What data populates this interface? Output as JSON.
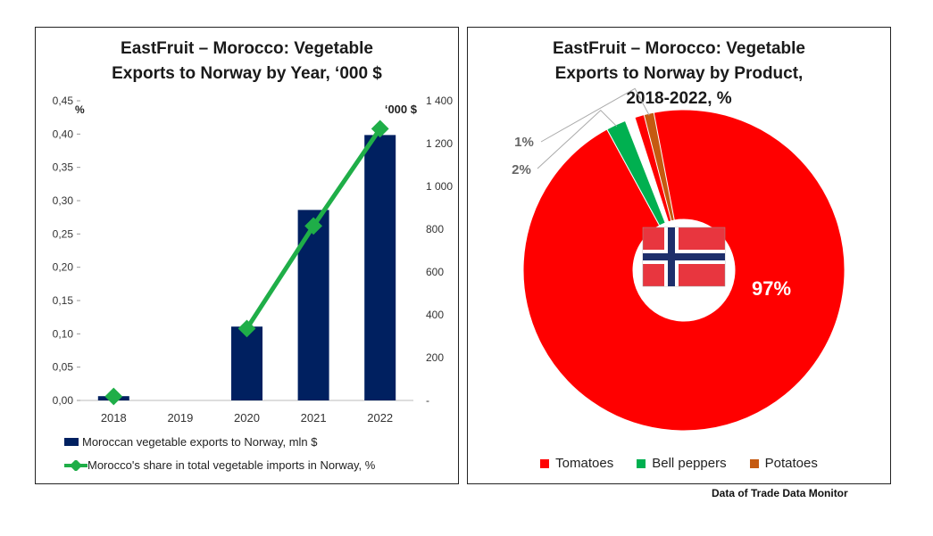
{
  "chart_data": [
    {
      "type": "bar",
      "title": "EastFruit – Morocco: Vegetable Exports to Norway by Year, ‘000 $",
      "title_lines": [
        "EastFruit – Morocco: Vegetable",
        "Exports to Norway by Year, ‘000 $"
      ],
      "categories": [
        "2018",
        "2019",
        "2020",
        "2021",
        "2022"
      ],
      "left_axis_unit": "%",
      "right_axis_unit": "‘000 $",
      "left_ticks": [
        "0,00",
        "0,05",
        "0,10",
        "0,15",
        "0,20",
        "0,25",
        "0,30",
        "0,35",
        "0,40",
        "0,45"
      ],
      "right_ticks": [
        "-",
        "200",
        "400",
        "600",
        "800",
        "1 000",
        "1 200",
        "1 400"
      ],
      "ylim_left": [
        0,
        0.45
      ],
      "ylim_right": [
        0,
        1400
      ],
      "series": [
        {
          "name": "Moroccan vegetable exports to Norway, mln $",
          "type": "bar",
          "axis": "right",
          "color": "#002060",
          "values": [
            20,
            0,
            345,
            890,
            1240
          ]
        },
        {
          "name": "Morocco's share in total vegetable imports in Norway, %",
          "type": "line",
          "axis": "left",
          "color": "#1fae48",
          "values": [
            0.006,
            null,
            0.108,
            0.262,
            0.408
          ]
        }
      ],
      "legend_position": "bottom"
    },
    {
      "type": "pie",
      "title": "EastFruit – Morocco: Vegetable Exports to Norway by Product, 2018-2022, %",
      "title_lines": [
        "EastFruit – Morocco: Vegetable",
        "Exports to Norway by Product,",
        "2018-2022, %"
      ],
      "categories": [
        "Tomatoes",
        "Bell peppers",
        "Potatoes"
      ],
      "values": [
        97,
        2,
        1
      ],
      "data_labels": [
        "97%",
        "2%",
        "1%"
      ],
      "colors": [
        "#ff0000",
        "#00b050",
        "#c55a11"
      ],
      "center_image": "norway-flag",
      "legend_position": "bottom"
    }
  ],
  "source": "Data of Trade Data Monitor"
}
